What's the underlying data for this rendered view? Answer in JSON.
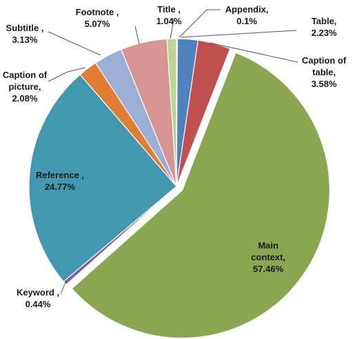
{
  "chart_data": {
    "type": "pie",
    "title": "",
    "legend": "none",
    "slices": [
      {
        "name": "Appendix",
        "name_text": "Appendix,",
        "value_text": "0.1%",
        "value": 0.1,
        "color": "#8064a2"
      },
      {
        "name": "Table",
        "name_text": "Table,",
        "value_text": "2.23%",
        "value": 2.23,
        "color": "#4f81bd"
      },
      {
        "name": "Caption of table",
        "name_text": "Caption of table,",
        "value_text": "3.58%",
        "value": 3.58,
        "color": "#c0504d"
      },
      {
        "name": "Main context",
        "name_text": "Main context,",
        "value_text": "57.46%",
        "value": 57.46,
        "color": "#8ba650"
      },
      {
        "name": "Keyword",
        "name_text": "Keyword ,",
        "value_text": "0.44%",
        "value": 0.44,
        "color": "#7f62a0"
      },
      {
        "name": "Reference",
        "name_text": "Reference ,",
        "value_text": "24.77%",
        "value": 24.77,
        "color": "#4198b0"
      },
      {
        "name": "Caption of picture",
        "name_text": "Caption of picture,",
        "value_text": "2.08%",
        "value": 2.08,
        "color": "#e07d32"
      },
      {
        "name": "Subtitle",
        "name_text": "Subtitle ,",
        "value_text": "3.13%",
        "value": 3.13,
        "color": "#9aaed6"
      },
      {
        "name": "Footnote",
        "name_text": "Footnote ,",
        "value_text": "5.07%",
        "value": 5.07,
        "color": "#d69593"
      },
      {
        "name": "Title",
        "name_text": "Title ,",
        "value_text": "1.04%",
        "value": 1.04,
        "color": "#bcd597"
      }
    ],
    "exploded_slice": "Main context"
  }
}
